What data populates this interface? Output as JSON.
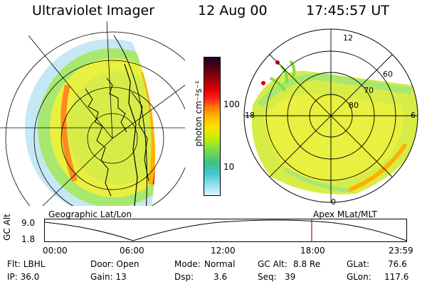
{
  "header": {
    "instrument": "Ultraviolet Imager",
    "date": "12 Aug 00",
    "time": "17:45:57 UT"
  },
  "left_panel": {
    "caption": "Geographic Lat/Lon"
  },
  "right_panel": {
    "caption": "Apex MLat/MLT",
    "mlt_labels": [
      "12",
      "18",
      "6",
      "0"
    ],
    "lat_labels": [
      "60",
      "70",
      "80"
    ]
  },
  "colorbar": {
    "unit_label": "photon cm⁻²s⁻¹",
    "tick_labels": [
      "100",
      "10"
    ],
    "scale": "log",
    "colors_top_to_bottom": [
      "#1a0030",
      "#5a0010",
      "#a00010",
      "#d80000",
      "#ff2020",
      "#ff7a00",
      "#ffb000",
      "#ffe000",
      "#c8f000",
      "#80e040",
      "#40c080",
      "#40c8d0",
      "#90e0f0",
      "#e0f6ff"
    ]
  },
  "altitude_plot": {
    "ylabel": "GC Alt",
    "y_ticks": [
      "9.0",
      "1.8"
    ],
    "x_ticks": [
      "00:00",
      "06:00",
      "12:00",
      "18:00",
      "23:59"
    ],
    "marker_time": "17:45",
    "marker_color": "#cc0000"
  },
  "info": {
    "filter": "Flt: LBHL",
    "door": "Door: Open",
    "mode_label": "Mode:",
    "mode_value": "Normal",
    "gc_alt_label": "GC Alt:",
    "gc_alt_value": "8.8 Re",
    "glat_label": "GLat:",
    "glat_value": "76.6",
    "ip": "IP: 36.0",
    "gain": "Gain: 13",
    "dsp_label": "Dsp:",
    "dsp_value": "3.6",
    "seq_label": "Seq:",
    "seq_value": "39",
    "glon_label": "GLon:",
    "glon_value": "117.6"
  }
}
